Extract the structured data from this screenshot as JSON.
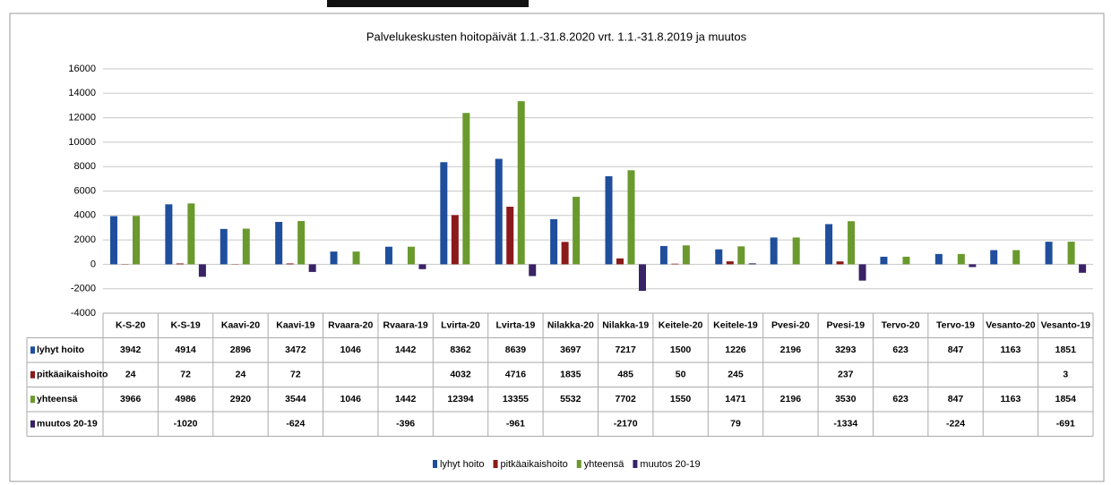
{
  "chart_data": {
    "type": "bar",
    "title": "Palvelukeskusten hoitopäivät 1.1.-31.8.2020 vrt. 1.1.-31.8.2019 ja muutos",
    "categories": [
      "K-S-20",
      "K-S-19",
      "Kaavi-20",
      "Kaavi-19",
      "Rvaara-20",
      "Rvaara-19",
      "Lvirta-20",
      "Lvirta-19",
      "Nilakka-20",
      "Nilakka-19",
      "Keitele-20",
      "Keitele-19",
      "Pvesi-20",
      "Pvesi-19",
      "Tervo-20",
      "Tervo-19",
      "Vesanto-20",
      "Vesanto-19"
    ],
    "series": [
      {
        "name": "lyhyt hoito",
        "color": "#1f4e9c",
        "values": [
          3942,
          4914,
          2896,
          3472,
          1046,
          1442,
          8362,
          8639,
          3697,
          7217,
          1500,
          1226,
          2196,
          3293,
          623,
          847,
          1163,
          1851
        ]
      },
      {
        "name": "pitkäaikaishoito",
        "color": "#8b1a1a",
        "values": [
          24,
          72,
          24,
          72,
          null,
          null,
          4032,
          4716,
          1835,
          485,
          50,
          245,
          null,
          237,
          null,
          null,
          null,
          3
        ]
      },
      {
        "name": "yhteensä",
        "color": "#6a9a2e",
        "values": [
          3966,
          4986,
          2920,
          3544,
          1046,
          1442,
          12394,
          13355,
          5532,
          7702,
          1550,
          1471,
          2196,
          3530,
          623,
          847,
          1163,
          1854
        ]
      },
      {
        "name": "muutos 20-19",
        "color": "#3a2266",
        "values": [
          null,
          -1020,
          null,
          -624,
          null,
          -396,
          null,
          -961,
          null,
          -2170,
          null,
          79,
          null,
          -1334,
          null,
          -224,
          null,
          -691
        ]
      }
    ],
    "ylim": [
      -4000,
      16000
    ],
    "yticks": [
      -4000,
      -2000,
      0,
      2000,
      4000,
      6000,
      8000,
      10000,
      12000,
      14000,
      16000
    ],
    "grid": true
  }
}
